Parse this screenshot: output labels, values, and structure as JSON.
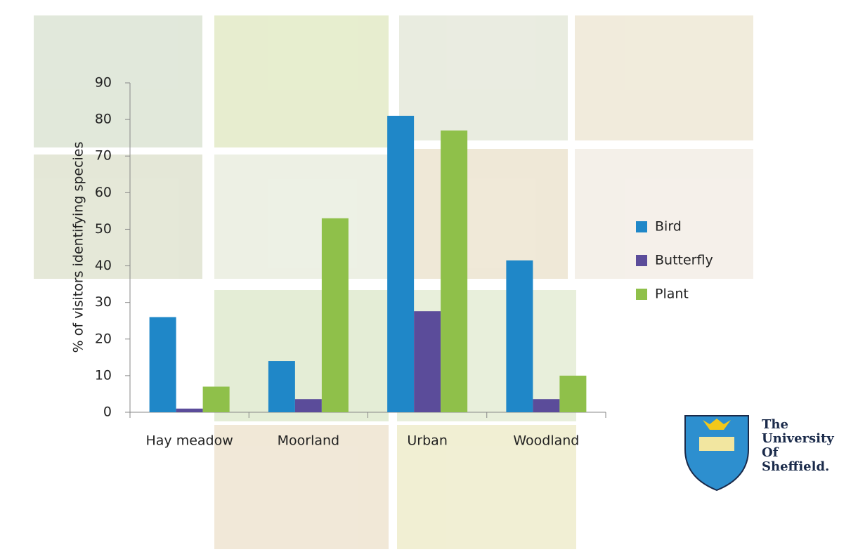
{
  "chart_data": {
    "type": "bar",
    "ylabel": "% of visitors identifying species",
    "categories": [
      "Hay meadow",
      "Moorland",
      "Urban",
      "Woodland"
    ],
    "series": [
      {
        "name": "Bird",
        "color": "#1f87c8",
        "values": [
          26,
          14,
          81,
          41.5
        ]
      },
      {
        "name": "Butterfly",
        "color": "#5b4c9a",
        "values": [
          1,
          3.6,
          27.6,
          3.6
        ]
      },
      {
        "name": "Plant",
        "color": "#8fc04a",
        "values": [
          7,
          53,
          77,
          10
        ]
      }
    ],
    "ylim": [
      0,
      90
    ],
    "yticks": [
      0,
      10,
      20,
      30,
      40,
      50,
      60,
      70,
      80,
      90
    ],
    "legend": "right"
  },
  "logo": {
    "lines": [
      "The",
      "University",
      "Of",
      "Sheffield."
    ]
  }
}
